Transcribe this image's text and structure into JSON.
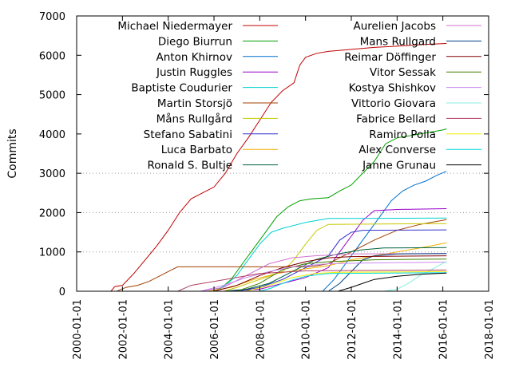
{
  "chart_data": {
    "type": "line",
    "title": "",
    "xlabel": "",
    "ylabel": "Commits",
    "xlim": [
      "2000-01-01",
      "2018-01-01"
    ],
    "ylim": [
      0,
      7000
    ],
    "x_ticks": [
      "2000-01-01",
      "2002-01-01",
      "2004-01-01",
      "2006-01-01",
      "2008-01-01",
      "2010-01-01",
      "2012-01-01",
      "2014-01-01",
      "2016-01-01",
      "2018-01-01"
    ],
    "y_ticks": [
      0,
      1000,
      2000,
      3000,
      4000,
      5000,
      6000,
      7000
    ],
    "grid": "horizontal dotted lines at 1000, 2000 and 3000",
    "legend_placement": "top, two columns",
    "series": [
      {
        "name": "Michael Niedermayer",
        "color": "#c00000",
        "points": [
          [
            "2001-07-01",
            0
          ],
          [
            "2001-09-01",
            120
          ],
          [
            "2002-01-01",
            150
          ],
          [
            "2002-07-01",
            450
          ],
          [
            "2003-01-01",
            800
          ],
          [
            "2003-07-01",
            1150
          ],
          [
            "2004-01-01",
            1550
          ],
          [
            "2004-07-01",
            2000
          ],
          [
            "2005-01-01",
            2350
          ],
          [
            "2005-07-01",
            2500
          ],
          [
            "2006-01-01",
            2650
          ],
          [
            "2006-07-01",
            3000
          ],
          [
            "2007-01-01",
            3500
          ],
          [
            "2007-07-01",
            3900
          ],
          [
            "2008-01-01",
            4350
          ],
          [
            "2008-07-01",
            4800
          ],
          [
            "2009-01-01",
            5100
          ],
          [
            "2009-07-01",
            5300
          ],
          [
            "2009-10-01",
            5750
          ],
          [
            "2010-01-01",
            5950
          ],
          [
            "2010-07-01",
            6050
          ],
          [
            "2011-01-01",
            6100
          ],
          [
            "2012-01-01",
            6150
          ],
          [
            "2013-01-01",
            6200
          ],
          [
            "2014-01-01",
            6230
          ],
          [
            "2015-01-01",
            6270
          ],
          [
            "2016-03-01",
            6300
          ]
        ]
      },
      {
        "name": "Diego Biurrun",
        "color": "#00a000",
        "points": [
          [
            "2005-10-01",
            0
          ],
          [
            "2006-04-01",
            50
          ],
          [
            "2006-10-01",
            300
          ],
          [
            "2007-04-01",
            700
          ],
          [
            "2007-10-01",
            1100
          ],
          [
            "2008-04-01",
            1500
          ],
          [
            "2008-10-01",
            1900
          ],
          [
            "2009-04-01",
            2150
          ],
          [
            "2009-10-01",
            2300
          ],
          [
            "2010-04-01",
            2350
          ],
          [
            "2011-01-01",
            2380
          ],
          [
            "2011-07-01",
            2550
          ],
          [
            "2012-01-01",
            2700
          ],
          [
            "2012-07-01",
            3000
          ],
          [
            "2013-01-01",
            3300
          ],
          [
            "2013-07-01",
            3750
          ],
          [
            "2014-01-01",
            3900
          ],
          [
            "2015-01-01",
            4000
          ],
          [
            "2016-01-01",
            4100
          ],
          [
            "2016-03-01",
            4130
          ]
        ]
      },
      {
        "name": "Anton Khirnov",
        "color": "#0070d0",
        "points": [
          [
            "2010-10-01",
            0
          ],
          [
            "2011-04-01",
            300
          ],
          [
            "2011-10-01",
            700
          ],
          [
            "2012-04-01",
            1100
          ],
          [
            "2012-10-01",
            1500
          ],
          [
            "2013-04-01",
            1900
          ],
          [
            "2013-10-01",
            2300
          ],
          [
            "2014-04-01",
            2550
          ],
          [
            "2014-10-01",
            2700
          ],
          [
            "2015-04-01",
            2800
          ],
          [
            "2015-10-01",
            2950
          ],
          [
            "2016-03-01",
            3050
          ]
        ]
      },
      {
        "name": "Justin Ruggles",
        "color": "#9900cc",
        "points": [
          [
            "2006-06-01",
            0
          ],
          [
            "2008-01-01",
            50
          ],
          [
            "2009-01-01",
            200
          ],
          [
            "2010-01-01",
            350
          ],
          [
            "2011-01-01",
            600
          ],
          [
            "2011-07-01",
            1000
          ],
          [
            "2012-01-01",
            1400
          ],
          [
            "2012-07-01",
            1800
          ],
          [
            "2013-01-01",
            2050
          ],
          [
            "2014-01-01",
            2080
          ],
          [
            "2016-03-01",
            2100
          ]
        ]
      },
      {
        "name": "Baptiste Coudurier",
        "color": "#00d0d0",
        "points": [
          [
            "2006-01-01",
            0
          ],
          [
            "2006-07-01",
            150
          ],
          [
            "2007-01-01",
            400
          ],
          [
            "2007-07-01",
            800
          ],
          [
            "2008-01-01",
            1200
          ],
          [
            "2008-07-01",
            1500
          ],
          [
            "2009-01-01",
            1600
          ],
          [
            "2010-01-01",
            1750
          ],
          [
            "2011-01-01",
            1850
          ],
          [
            "2016-03-01",
            1860
          ]
        ]
      },
      {
        "name": "Martin Storsjö",
        "color": "#a04000",
        "points": [
          [
            "2001-10-01",
            0
          ],
          [
            "2002-03-01",
            100
          ],
          [
            "2002-09-01",
            150
          ],
          [
            "2003-03-01",
            250
          ],
          [
            "2003-09-01",
            400
          ],
          [
            "2004-03-01",
            550
          ],
          [
            "2004-06-01",
            620
          ],
          [
            "2010-01-01",
            620
          ],
          [
            "2010-07-01",
            650
          ],
          [
            "2011-01-01",
            700
          ],
          [
            "2011-07-01",
            850
          ],
          [
            "2012-01-01",
            1000
          ],
          [
            "2012-07-01",
            1150
          ],
          [
            "2013-01-01",
            1300
          ],
          [
            "2014-01-01",
            1550
          ],
          [
            "2015-01-01",
            1700
          ],
          [
            "2016-03-01",
            1820
          ]
        ]
      },
      {
        "name": "Måns Rullgård",
        "color": "#c8c800",
        "points": [
          [
            "2006-06-01",
            0
          ],
          [
            "2007-01-01",
            100
          ],
          [
            "2008-01-01",
            300
          ],
          [
            "2009-01-01",
            500
          ],
          [
            "2009-07-01",
            800
          ],
          [
            "2010-01-01",
            1200
          ],
          [
            "2010-07-01",
            1550
          ],
          [
            "2011-01-01",
            1700
          ],
          [
            "2016-03-01",
            1720
          ]
        ]
      },
      {
        "name": "Stefano Sabatini",
        "color": "#3030d0",
        "points": [
          [
            "2007-01-01",
            0
          ],
          [
            "2008-01-01",
            100
          ],
          [
            "2009-01-01",
            300
          ],
          [
            "2010-01-01",
            600
          ],
          [
            "2011-01-01",
            900
          ],
          [
            "2011-07-01",
            1300
          ],
          [
            "2012-01-01",
            1500
          ],
          [
            "2012-07-01",
            1550
          ],
          [
            "2016-03-01",
            1560
          ]
        ]
      },
      {
        "name": "Luca Barbato",
        "color": "#f0b000",
        "points": [
          [
            "2005-10-01",
            0
          ],
          [
            "2006-10-01",
            100
          ],
          [
            "2007-10-01",
            300
          ],
          [
            "2008-10-01",
            450
          ],
          [
            "2009-10-01",
            550
          ],
          [
            "2011-01-01",
            650
          ],
          [
            "2012-01-01",
            800
          ],
          [
            "2013-01-01",
            900
          ],
          [
            "2014-01-01",
            1000
          ],
          [
            "2015-01-01",
            1100
          ],
          [
            "2016-03-01",
            1230
          ]
        ]
      },
      {
        "name": "Ronald S. Bultje",
        "color": "#006040",
        "points": [
          [
            "2006-06-01",
            0
          ],
          [
            "2007-06-01",
            50
          ],
          [
            "2008-06-01",
            200
          ],
          [
            "2009-06-01",
            500
          ],
          [
            "2010-06-01",
            800
          ],
          [
            "2011-06-01",
            950
          ],
          [
            "2012-06-01",
            1050
          ],
          [
            "2013-06-01",
            1100
          ],
          [
            "2016-03-01",
            1110
          ]
        ]
      },
      {
        "name": "Aurelien Jacobs",
        "color": "#d070d0",
        "points": [
          [
            "2005-06-01",
            0
          ],
          [
            "2006-06-01",
            100
          ],
          [
            "2007-06-01",
            400
          ],
          [
            "2008-06-01",
            700
          ],
          [
            "2009-06-01",
            850
          ],
          [
            "2010-06-01",
            900
          ],
          [
            "2012-01-01",
            950
          ],
          [
            "2016-03-01",
            960
          ]
        ]
      },
      {
        "name": "Mans Rullgard",
        "color": "#004080",
        "points": [
          [
            "2011-01-01",
            0
          ],
          [
            "2011-07-01",
            200
          ],
          [
            "2012-01-01",
            500
          ],
          [
            "2012-07-01",
            800
          ],
          [
            "2013-01-01",
            900
          ],
          [
            "2014-01-01",
            950
          ],
          [
            "2016-03-01",
            960
          ]
        ]
      },
      {
        "name": "Reimar Döffinger",
        "color": "#800000",
        "points": [
          [
            "2006-01-01",
            0
          ],
          [
            "2007-01-01",
            150
          ],
          [
            "2008-01-01",
            400
          ],
          [
            "2009-01-01",
            600
          ],
          [
            "2010-01-01",
            750
          ],
          [
            "2011-01-01",
            850
          ],
          [
            "2012-01-01",
            880
          ],
          [
            "2016-03-01",
            900
          ]
        ]
      },
      {
        "name": "Vitor Sessak",
        "color": "#408000",
        "points": [
          [
            "2007-01-01",
            0
          ],
          [
            "2008-01-01",
            200
          ],
          [
            "2009-01-01",
            550
          ],
          [
            "2010-01-01",
            700
          ],
          [
            "2011-01-01",
            750
          ],
          [
            "2013-01-01",
            800
          ],
          [
            "2016-03-01",
            820
          ]
        ]
      },
      {
        "name": "Kostya Shishkov",
        "color": "#cc88ee",
        "points": [
          [
            "2005-06-01",
            0
          ],
          [
            "2006-06-01",
            150
          ],
          [
            "2007-06-01",
            350
          ],
          [
            "2008-06-01",
            500
          ],
          [
            "2009-06-01",
            620
          ],
          [
            "2011-01-01",
            700
          ],
          [
            "2013-01-01",
            720
          ],
          [
            "2016-03-01",
            740
          ]
        ]
      },
      {
        "name": "Vittorio Giovara",
        "color": "#88eedd",
        "points": [
          [
            "2013-06-01",
            0
          ],
          [
            "2014-01-01",
            50
          ],
          [
            "2014-07-01",
            200
          ],
          [
            "2015-01-01",
            400
          ],
          [
            "2015-07-01",
            550
          ],
          [
            "2016-03-01",
            760
          ]
        ]
      },
      {
        "name": "Fabrice Bellard",
        "color": "#b04060",
        "points": [
          [
            "2004-06-01",
            0
          ],
          [
            "2005-01-01",
            150
          ],
          [
            "2006-01-01",
            250
          ],
          [
            "2007-01-01",
            350
          ],
          [
            "2008-01-01",
            450
          ],
          [
            "2010-01-01",
            520
          ],
          [
            "2016-03-01",
            540
          ]
        ]
      },
      {
        "name": "Ramiro Polla",
        "color": "#eeee00",
        "points": [
          [
            "2007-06-01",
            0
          ],
          [
            "2008-06-01",
            150
          ],
          [
            "2009-06-01",
            350
          ],
          [
            "2010-06-01",
            450
          ],
          [
            "2011-06-01",
            480
          ],
          [
            "2016-03-01",
            500
          ]
        ]
      },
      {
        "name": "Alex Converse",
        "color": "#00d8d8",
        "points": [
          [
            "2008-01-01",
            0
          ],
          [
            "2008-07-01",
            80
          ],
          [
            "2009-01-01",
            200
          ],
          [
            "2009-07-01",
            300
          ],
          [
            "2010-01-01",
            380
          ],
          [
            "2011-01-01",
            450
          ],
          [
            "2016-03-01",
            470
          ]
        ]
      },
      {
        "name": "Janne Grunau",
        "color": "#000000",
        "points": [
          [
            "2011-06-01",
            0
          ],
          [
            "2012-01-01",
            100
          ],
          [
            "2012-07-01",
            200
          ],
          [
            "2013-01-01",
            300
          ],
          [
            "2014-01-01",
            380
          ],
          [
            "2015-01-01",
            430
          ],
          [
            "2016-03-01",
            460
          ]
        ]
      }
    ]
  }
}
